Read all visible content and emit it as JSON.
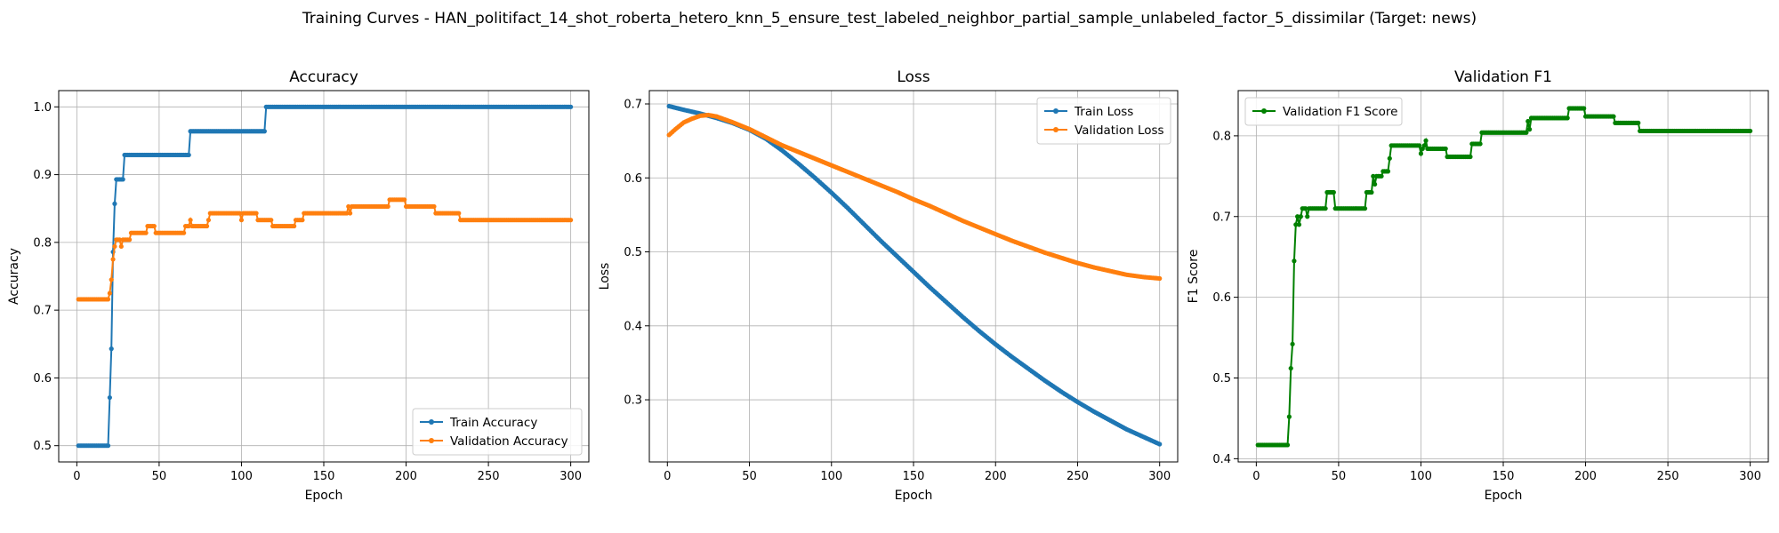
{
  "figure": {
    "title": "Training Curves - HAN_politifact_14_shot_roberta_hetero_knn_5_ensure_test_labeled_neighbor_partial_sample_unlabeled_factor_5_dissimilar (Target: news)"
  },
  "colors": {
    "train": "#1f77b4",
    "validation": "#ff7f0e",
    "f1": "#008000",
    "grid": "#b0b0b0"
  },
  "chart_data": [
    {
      "type": "line",
      "title": "Accuracy",
      "xlabel": "Epoch",
      "ylabel": "Accuracy",
      "xlim": [
        -11,
        311
      ],
      "ylim": [
        0.476,
        1.024
      ],
      "xticks": [
        0,
        50,
        100,
        150,
        200,
        250,
        300
      ],
      "yticks": [
        0.5,
        0.6,
        0.7,
        0.8,
        0.9,
        1.0
      ],
      "ytick_labels": [
        "0.5",
        "0.6",
        "0.7",
        "0.8",
        "0.9",
        "1.0"
      ],
      "grid": true,
      "legend_position": "lower-right",
      "series": [
        {
          "name": "Train Accuracy",
          "color": "#1f77b4",
          "points": [
            [
              1,
              0.5
            ],
            [
              19,
              0.5
            ],
            [
              20,
              0.571
            ],
            [
              21,
              0.643
            ],
            [
              22,
              0.786
            ],
            [
              23,
              0.857
            ],
            [
              24,
              0.893
            ],
            [
              28,
              0.893
            ],
            [
              29,
              0.929
            ],
            [
              68,
              0.929
            ],
            [
              69,
              0.964
            ],
            [
              114,
              0.964
            ],
            [
              115,
              1.0
            ],
            [
              300,
              1.0
            ]
          ]
        },
        {
          "name": "Validation Accuracy",
          "color": "#ff7f0e",
          "points": [
            [
              1,
              0.716
            ],
            [
              19,
              0.716
            ],
            [
              20,
              0.725
            ],
            [
              21,
              0.745
            ],
            [
              22,
              0.775
            ],
            [
              23,
              0.794
            ],
            [
              24,
              0.804
            ],
            [
              26,
              0.804
            ],
            [
              27,
              0.794
            ],
            [
              28,
              0.804
            ],
            [
              32,
              0.804
            ],
            [
              33,
              0.814
            ],
            [
              42,
              0.814
            ],
            [
              43,
              0.824
            ],
            [
              47,
              0.824
            ],
            [
              48,
              0.814
            ],
            [
              65,
              0.814
            ],
            [
              66,
              0.824
            ],
            [
              68,
              0.824
            ],
            [
              69,
              0.833
            ],
            [
              70,
              0.824
            ],
            [
              79,
              0.824
            ],
            [
              80,
              0.833
            ],
            [
              81,
              0.843
            ],
            [
              99,
              0.843
            ],
            [
              100,
              0.833
            ],
            [
              101,
              0.843
            ],
            [
              109,
              0.843
            ],
            [
              110,
              0.833
            ],
            [
              118,
              0.833
            ],
            [
              119,
              0.824
            ],
            [
              132,
              0.824
            ],
            [
              133,
              0.833
            ],
            [
              137,
              0.833
            ],
            [
              138,
              0.843
            ],
            [
              164,
              0.843
            ],
            [
              165,
              0.853
            ],
            [
              166,
              0.843
            ],
            [
              167,
              0.853
            ],
            [
              189,
              0.853
            ],
            [
              190,
              0.863
            ],
            [
              199,
              0.863
            ],
            [
              200,
              0.853
            ],
            [
              217,
              0.853
            ],
            [
              218,
              0.843
            ],
            [
              232,
              0.843
            ],
            [
              233,
              0.833
            ],
            [
              300,
              0.833
            ]
          ]
        }
      ]
    },
    {
      "type": "line",
      "title": "Loss",
      "xlabel": "Epoch",
      "ylabel": "Loss",
      "xlim": [
        -11,
        311
      ],
      "ylim": [
        0.216,
        0.718
      ],
      "xticks": [
        0,
        50,
        100,
        150,
        200,
        250,
        300
      ],
      "yticks": [
        0.3,
        0.4,
        0.5,
        0.6,
        0.7
      ],
      "ytick_labels": [
        "0.3",
        "0.4",
        "0.5",
        "0.6",
        "0.7"
      ],
      "grid": true,
      "legend_position": "upper-right",
      "series": [
        {
          "name": "Train Loss",
          "color": "#1f77b4",
          "points": [
            [
              1,
              0.697
            ],
            [
              10,
              0.692
            ],
            [
              20,
              0.687
            ],
            [
              30,
              0.681
            ],
            [
              40,
              0.674
            ],
            [
              50,
              0.665
            ],
            [
              60,
              0.653
            ],
            [
              70,
              0.637
            ],
            [
              80,
              0.619
            ],
            [
              90,
              0.6
            ],
            [
              100,
              0.58
            ],
            [
              110,
              0.559
            ],
            [
              120,
              0.537
            ],
            [
              130,
              0.515
            ],
            [
              140,
              0.494
            ],
            [
              150,
              0.473
            ],
            [
              160,
              0.452
            ],
            [
              170,
              0.432
            ],
            [
              180,
              0.412
            ],
            [
              190,
              0.393
            ],
            [
              200,
              0.375
            ],
            [
              210,
              0.358
            ],
            [
              220,
              0.342
            ],
            [
              230,
              0.326
            ],
            [
              240,
              0.311
            ],
            [
              250,
              0.297
            ],
            [
              260,
              0.284
            ],
            [
              270,
              0.272
            ],
            [
              280,
              0.26
            ],
            [
              290,
              0.25
            ],
            [
              300,
              0.24
            ]
          ]
        },
        {
          "name": "Validation Loss",
          "color": "#ff7f0e",
          "points": [
            [
              1,
              0.658
            ],
            [
              5,
              0.666
            ],
            [
              10,
              0.675
            ],
            [
              15,
              0.68
            ],
            [
              20,
              0.684
            ],
            [
              25,
              0.685
            ],
            [
              30,
              0.683
            ],
            [
              40,
              0.675
            ],
            [
              50,
              0.666
            ],
            [
              60,
              0.655
            ],
            [
              70,
              0.644
            ],
            [
              80,
              0.635
            ],
            [
              90,
              0.626
            ],
            [
              100,
              0.617
            ],
            [
              110,
              0.608
            ],
            [
              120,
              0.599
            ],
            [
              130,
              0.59
            ],
            [
              140,
              0.581
            ],
            [
              150,
              0.571
            ],
            [
              160,
              0.562
            ],
            [
              170,
              0.552
            ],
            [
              180,
              0.542
            ],
            [
              190,
              0.533
            ],
            [
              200,
              0.524
            ],
            [
              210,
              0.515
            ],
            [
              220,
              0.507
            ],
            [
              230,
              0.499
            ],
            [
              240,
              0.492
            ],
            [
              250,
              0.485
            ],
            [
              260,
              0.479
            ],
            [
              270,
              0.474
            ],
            [
              280,
              0.469
            ],
            [
              290,
              0.466
            ],
            [
              300,
              0.464
            ]
          ]
        }
      ]
    },
    {
      "type": "line",
      "title": "Validation F1",
      "xlabel": "Epoch",
      "ylabel": "F1 Score",
      "xlim": [
        -11,
        311
      ],
      "ylim": [
        0.396,
        0.856
      ],
      "xticks": [
        0,
        50,
        100,
        150,
        200,
        250,
        300
      ],
      "yticks": [
        0.4,
        0.5,
        0.6,
        0.7,
        0.8
      ],
      "ytick_labels": [
        "0.4",
        "0.5",
        "0.6",
        "0.7",
        "0.8"
      ],
      "grid": true,
      "legend_position": "upper-left",
      "series": [
        {
          "name": "Validation F1 Score",
          "color": "#008000",
          "points": [
            [
              1,
              0.417
            ],
            [
              19,
              0.417
            ],
            [
              20,
              0.452
            ],
            [
              21,
              0.512
            ],
            [
              22,
              0.542
            ],
            [
              23,
              0.645
            ],
            [
              24,
              0.69
            ],
            [
              25,
              0.7
            ],
            [
              26,
              0.69
            ],
            [
              27,
              0.7
            ],
            [
              28,
              0.71
            ],
            [
              30,
              0.71
            ],
            [
              31,
              0.7
            ],
            [
              32,
              0.71
            ],
            [
              42,
              0.71
            ],
            [
              43,
              0.73
            ],
            [
              47,
              0.73
            ],
            [
              48,
              0.71
            ],
            [
              66,
              0.71
            ],
            [
              67,
              0.73
            ],
            [
              70,
              0.73
            ],
            [
              71,
              0.75
            ],
            [
              72,
              0.74
            ],
            [
              73,
              0.75
            ],
            [
              76,
              0.75
            ],
            [
              77,
              0.756
            ],
            [
              80,
              0.756
            ],
            [
              81,
              0.772
            ],
            [
              82,
              0.788
            ],
            [
              99,
              0.788
            ],
            [
              100,
              0.778
            ],
            [
              101,
              0.784
            ],
            [
              102,
              0.788
            ],
            [
              103,
              0.794
            ],
            [
              104,
              0.784
            ],
            [
              115,
              0.784
            ],
            [
              116,
              0.774
            ],
            [
              130,
              0.774
            ],
            [
              131,
              0.79
            ],
            [
              136,
              0.79
            ],
            [
              137,
              0.804
            ],
            [
              164,
              0.804
            ],
            [
              165,
              0.818
            ],
            [
              166,
              0.808
            ],
            [
              167,
              0.822
            ],
            [
              189,
              0.822
            ],
            [
              190,
              0.834
            ],
            [
              199,
              0.834
            ],
            [
              200,
              0.824
            ],
            [
              217,
              0.824
            ],
            [
              218,
              0.816
            ],
            [
              232,
              0.816
            ],
            [
              233,
              0.806
            ],
            [
              300,
              0.806
            ]
          ]
        }
      ]
    }
  ]
}
